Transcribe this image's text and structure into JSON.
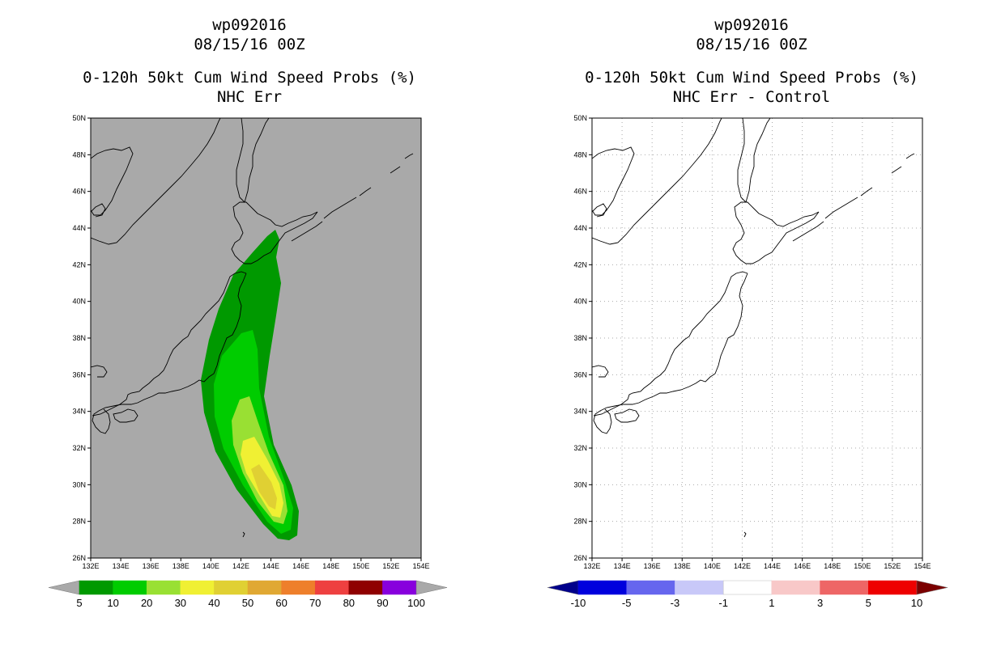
{
  "panels": [
    {
      "storm": "wp092016",
      "date": "08/15/16 00Z",
      "product": "0-120h 50kt Cum Wind Speed Probs (%)",
      "subtitle": "NHC Err",
      "background": "#a9a9a9"
    },
    {
      "storm": "wp092016",
      "date": "08/15/16 00Z",
      "product": "0-120h 50kt Cum Wind Speed Probs (%)",
      "subtitle": "NHC Err - Control",
      "background": "#ffffff"
    }
  ],
  "chart_data": [
    {
      "type": "heatmap",
      "title": "NHC Err",
      "x_ticks": [
        "132E",
        "134E",
        "136E",
        "138E",
        "140E",
        "142E",
        "144E",
        "146E",
        "148E",
        "150E",
        "152E",
        "154E"
      ],
      "y_ticks": [
        "26N",
        "28N",
        "30N",
        "32N",
        "34N",
        "36N",
        "38N",
        "40N",
        "42N",
        "44N",
        "46N",
        "48N",
        "50N"
      ],
      "xlim": [
        132,
        154
      ],
      "ylim": [
        26,
        50
      ],
      "grid": false,
      "colorbar": {
        "labels": [
          "5",
          "10",
          "20",
          "30",
          "40",
          "50",
          "60",
          "70",
          "80",
          "90",
          "100"
        ],
        "colors": [
          "#009900",
          "#00cc00",
          "#99e033",
          "#f0f033",
          "#e0d033",
          "#e0a833",
          "#ee7f2b",
          "#ee4040",
          "#8f0000",
          "#8800dd"
        ],
        "arrow_colors": [
          "#a9a9a9",
          "#a9a9a9"
        ]
      },
      "probability_contours_percent": [
        5,
        10,
        20,
        30,
        40
      ],
      "max_probability_percent": 40
    },
    {
      "type": "heatmap",
      "title": "NHC Err - Control",
      "x_ticks": [
        "132E",
        "134E",
        "136E",
        "138E",
        "140E",
        "142E",
        "144E",
        "146E",
        "148E",
        "150E",
        "152E",
        "154E"
      ],
      "y_ticks": [
        "26N",
        "28N",
        "30N",
        "32N",
        "34N",
        "36N",
        "38N",
        "40N",
        "42N",
        "44N",
        "46N",
        "48N",
        "50N"
      ],
      "xlim": [
        132,
        154
      ],
      "ylim": [
        26,
        50
      ],
      "grid": true,
      "colorbar": {
        "labels": [
          "-10",
          "-5",
          "-3",
          "-1",
          "1",
          "3",
          "5",
          "10"
        ],
        "colors": [
          "#0000dd",
          "#6666ee",
          "#c8c8f8",
          "#ffffff",
          "#f8c8c8",
          "#ee6666",
          "#ee0000"
        ],
        "arrow_colors": [
          "#00008b",
          "#7b0000"
        ]
      }
    }
  ]
}
